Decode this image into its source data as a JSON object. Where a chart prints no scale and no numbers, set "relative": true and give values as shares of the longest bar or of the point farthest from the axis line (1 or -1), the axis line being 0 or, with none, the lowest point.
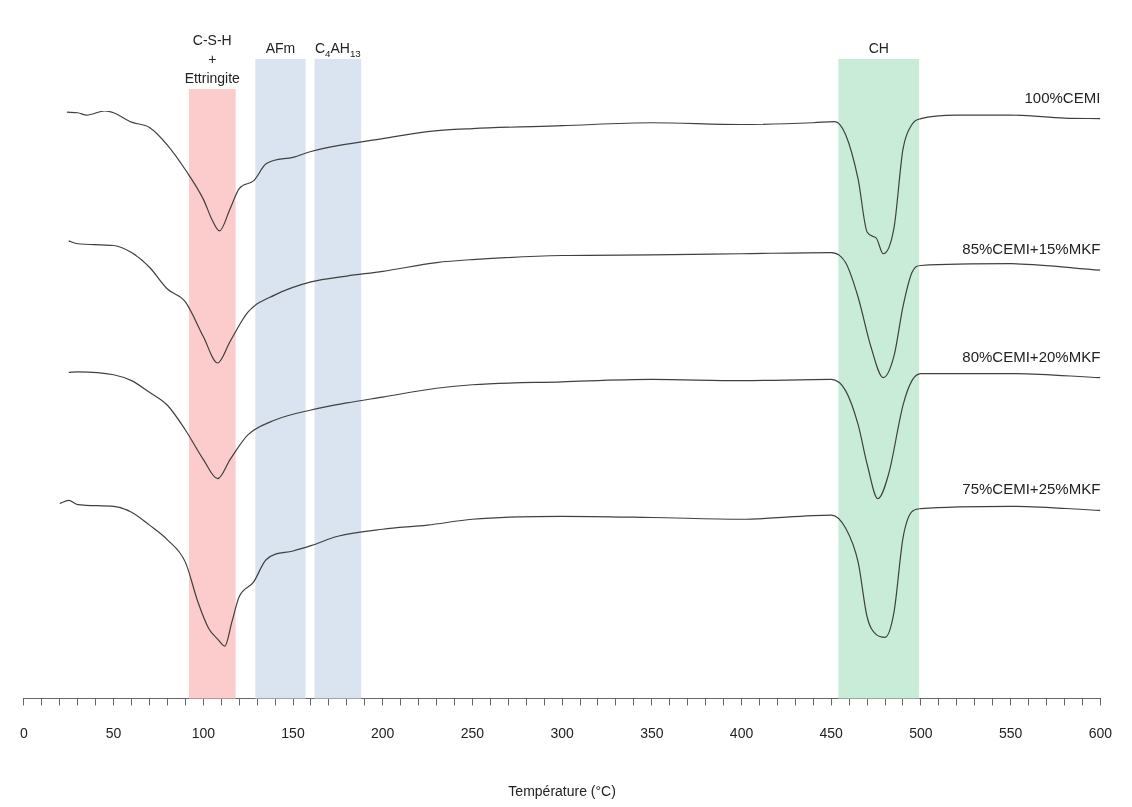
{
  "chart_data": {
    "type": "line",
    "relative": true,
    "xlabel": "Température (°C)",
    "xlim": [
      0,
      600
    ],
    "xticks": [
      0,
      {
        "value": 10,
        "label": null
      },
      {
        "value": 20,
        "label": null
      },
      {
        "value": 30,
        "label": null
      },
      {
        "value": 40,
        "label": null
      },
      50,
      {
        "value": 60,
        "label": null
      },
      {
        "value": 70,
        "label": null
      },
      {
        "value": 80,
        "label": null
      },
      {
        "value": 90,
        "label": null
      },
      100,
      {
        "value": 110,
        "label": null
      },
      {
        "value": 120,
        "label": null
      },
      {
        "value": 130,
        "label": null
      },
      {
        "value": 140,
        "label": null
      },
      150,
      {
        "value": 160,
        "label": null
      },
      {
        "value": 170,
        "label": null
      },
      {
        "value": 180,
        "label": null
      },
      {
        "value": 190,
        "label": null
      },
      200,
      {
        "value": 210,
        "label": null
      },
      {
        "value": 220,
        "label": null
      },
      {
        "value": 230,
        "label": null
      },
      {
        "value": 240,
        "label": null
      },
      250,
      {
        "value": 260,
        "label": null
      },
      {
        "value": 270,
        "label": null
      },
      {
        "value": 280,
        "label": null
      },
      {
        "value": 290,
        "label": null
      },
      300,
      {
        "value": 310,
        "label": null
      },
      {
        "value": 320,
        "label": null
      },
      {
        "value": 330,
        "label": null
      },
      {
        "value": 340,
        "label": null
      },
      350,
      {
        "value": 360,
        "label": null
      },
      {
        "value": 370,
        "label": null
      },
      {
        "value": 380,
        "label": null
      },
      {
        "value": 390,
        "label": null
      },
      400,
      {
        "value": 410,
        "label": null
      },
      {
        "value": 420,
        "label": null
      },
      {
        "value": 430,
        "label": null
      },
      {
        "value": 440,
        "label": null
      },
      450,
      {
        "value": 460,
        "label": null
      },
      {
        "value": 470,
        "label": null
      },
      {
        "value": 480,
        "label": null
      },
      {
        "value": 490,
        "label": null
      },
      500,
      {
        "value": 510,
        "label": null
      },
      {
        "value": 520,
        "label": null
      },
      {
        "value": 530,
        "label": null
      },
      {
        "value": 540,
        "label": null
      },
      550,
      {
        "value": 560,
        "label": null
      },
      {
        "value": 570,
        "label": null
      },
      {
        "value": 580,
        "label": null
      },
      {
        "value": 590,
        "label": null
      },
      600
    ],
    "grid": false,
    "legend": false,
    "marker": "none",
    "line_style": "solid",
    "bands": [
      {
        "axis": "x",
        "from": 92,
        "to": 118,
        "label": "C-S-H\n+\nEttringite",
        "color": "#fccbcb"
      },
      {
        "axis": "x",
        "from": 129,
        "to": 157,
        "label": "AFm",
        "color": "#dae3f0"
      },
      {
        "axis": "x",
        "from": 162,
        "to": 188,
        "label": "C$_{4}$AH$_{13}$",
        "color": "#dae3f0"
      },
      {
        "axis": "x",
        "from": 454,
        "to": 499,
        "label": "CH",
        "color": "#c8ecd8"
      }
    ],
    "series": [
      {
        "name": "100%CEMI",
        "color": "#404040",
        "x": [
          24,
          30,
          35,
          45,
          50,
          60,
          70,
          80,
          90,
          100,
          105,
          109,
          115,
          120,
          128,
          135,
          150,
          160,
          175,
          200,
          225,
          250,
          300,
          350,
          400,
          440,
          452,
          458,
          465,
          470,
          475,
          479,
          485,
          490,
          495,
          500,
          520,
          550,
          580,
          600
        ],
        "values": [
          0.998,
          0.997,
          0.993,
          1.0,
          0.997,
          0.981,
          0.972,
          0.942,
          0.9,
          0.85,
          0.814,
          0.796,
          0.834,
          0.868,
          0.881,
          0.91,
          0.921,
          0.931,
          0.941,
          0.953,
          0.965,
          0.97,
          0.975,
          0.98,
          0.977,
          0.98,
          0.982,
          0.96,
          0.884,
          0.794,
          0.784,
          0.757,
          0.801,
          0.935,
          0.977,
          0.987,
          0.993,
          0.993,
          0.988,
          0.987
        ]
      },
      {
        "name": "85%CEMI+15%MKF",
        "color": "#404040",
        "x": [
          25,
          30,
          50,
          60,
          70,
          80,
          90,
          100,
          108,
          115,
          125,
          140,
          160,
          180,
          200,
          230,
          250,
          300,
          350,
          400,
          450,
          458,
          465,
          472,
          479,
          485,
          490,
          495,
          500,
          550,
          600
        ],
        "values": [
          0.779,
          0.774,
          0.771,
          0.759,
          0.734,
          0.697,
          0.675,
          0.616,
          0.571,
          0.608,
          0.658,
          0.687,
          0.709,
          0.719,
          0.727,
          0.742,
          0.747,
          0.754,
          0.755,
          0.757,
          0.759,
          0.742,
          0.683,
          0.6,
          0.546,
          0.583,
          0.667,
          0.725,
          0.737,
          0.74,
          0.729
        ]
      },
      {
        "name": "80%CEMI+20%MKF",
        "color": "#404040",
        "x": [
          25,
          30,
          50,
          60,
          70,
          80,
          90,
          100,
          108,
          115,
          125,
          140,
          160,
          180,
          200,
          230,
          250,
          300,
          350,
          400,
          450,
          458,
          465,
          470,
          476,
          482,
          490,
          495,
          500,
          550,
          600
        ],
        "values": [
          0.555,
          0.556,
          0.551,
          0.541,
          0.521,
          0.499,
          0.457,
          0.407,
          0.374,
          0.407,
          0.449,
          0.474,
          0.491,
          0.503,
          0.513,
          0.528,
          0.534,
          0.539,
          0.543,
          0.541,
          0.543,
          0.524,
          0.466,
          0.399,
          0.34,
          0.382,
          0.499,
          0.541,
          0.553,
          0.553,
          0.546
        ]
      },
      {
        "name": "75%CEMI+25%MKF",
        "color": "#404040",
        "x": [
          20,
          25,
          30,
          50,
          60,
          70,
          80,
          90,
          97,
          103,
          108,
          112,
          116,
          120,
          128,
          135,
          150,
          160,
          175,
          200,
          225,
          250,
          300,
          350,
          400,
          450,
          458,
          465,
          470,
          475,
          480,
          485,
          490,
          495,
          500,
          550,
          600
        ],
        "values": [
          0.332,
          0.337,
          0.33,
          0.327,
          0.317,
          0.295,
          0.27,
          0.232,
          0.164,
          0.119,
          0.101,
          0.089,
          0.131,
          0.173,
          0.198,
          0.236,
          0.251,
          0.26,
          0.276,
          0.288,
          0.295,
          0.305,
          0.31,
          0.308,
          0.305,
          0.312,
          0.29,
          0.232,
          0.139,
          0.109,
          0.104,
          0.147,
          0.273,
          0.318,
          0.323,
          0.327,
          0.32
        ]
      }
    ]
  }
}
